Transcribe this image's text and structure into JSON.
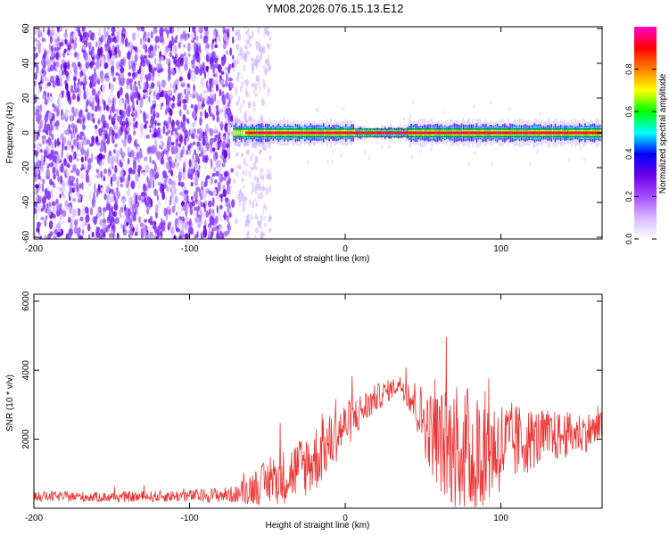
{
  "title": "YM08.2026.076.15.13.E12",
  "chart_data": [
    {
      "type": "heatmap",
      "xlabel": "Height of straight line (km)",
      "ylabel": "Frequency (Hz)",
      "xlim": [
        -200,
        165
      ],
      "ylim": [
        -61,
        61
      ],
      "x_ticks": [
        -200,
        -100,
        0,
        100
      ],
      "y_ticks": [
        -60,
        -40,
        -20,
        0,
        20,
        40,
        60
      ],
      "colorbar": {
        "label": "Normalized spectral amplitude",
        "range": [
          0,
          1
        ],
        "ticks": [
          0.0,
          0.2,
          0.4,
          0.6,
          0.8
        ],
        "colors": [
          "#ffffff",
          "#d5b8ff",
          "#a64dff",
          "#6a00e6",
          "#0000ff",
          "#00ffff",
          "#00ff00",
          "#ffff00",
          "#ff8000",
          "#ff0000",
          "#ff00cc"
        ]
      },
      "regions": [
        {
          "x_from": -200,
          "x_to": -72,
          "description_level": "dense purple noise across all frequencies"
        },
        {
          "x_from": -72,
          "x_to": -48,
          "description_level": "fading light purple noise"
        },
        {
          "x_from": -72,
          "x_to": 165,
          "band_center_hz": 0,
          "band_halfwidth_hz": 3,
          "peak_amplitude": 1.0
        }
      ]
    },
    {
      "type": "line",
      "xlabel": "Height of straight line (km)",
      "ylabel": "SNR (10 * v/v)",
      "xlim": [
        -200,
        165
      ],
      "ylim": [
        0,
        6200
      ],
      "x_ticks": [
        -200,
        -100,
        0,
        100
      ],
      "y_ticks": [
        2000,
        4000,
        6000
      ],
      "color": "#ee3333",
      "envelope": {
        "x": [
          -200,
          -150,
          -100,
          -70,
          -60,
          -40,
          -20,
          0,
          20,
          35,
          40,
          55,
          65,
          80,
          100,
          120,
          140,
          165
        ],
        "base": [
          350,
          320,
          360,
          400,
          600,
          900,
          1400,
          2400,
          3200,
          3600,
          3400,
          2200,
          1800,
          1600,
          1800,
          2000,
          2100,
          2300
        ],
        "amp": [
          150,
          150,
          180,
          250,
          500,
          800,
          1000,
          700,
          400,
          250,
          500,
          1200,
          1700,
          2000,
          1400,
          900,
          700,
          500
        ]
      }
    }
  ]
}
